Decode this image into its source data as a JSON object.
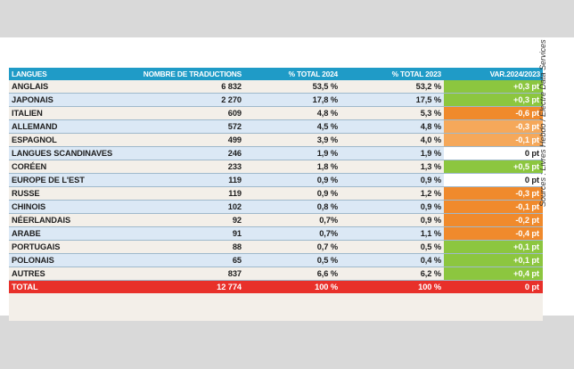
{
  "colors": {
    "header_bg": "#1f9bc7",
    "row_zebra": "#dbe8f5",
    "total_bg": "#e8302a",
    "var_positive": "#8cc63f",
    "var_negative": "#f08a2c",
    "var_small_negative": "#f5a85a",
    "var_zero": "#ffffff"
  },
  "table": {
    "headers": [
      "LANGUES",
      "NOMBRE DE TRADUCTIONS",
      "% TOTAL 2024",
      "% TOTAL 2023",
      "VAR.2024/2023"
    ],
    "rows": [
      {
        "lang": "ANGLAIS",
        "count": "6 832",
        "p2024": "53,5 %",
        "p2023": "53,2 %",
        "var": "+0,3 pt",
        "var_color": "#8cc63f"
      },
      {
        "lang": "JAPONAIS",
        "count": "2 270",
        "p2024": "17,8 %",
        "p2023": "17,5 %",
        "var": "+0,3 pt",
        "var_color": "#8cc63f"
      },
      {
        "lang": "ITALIEN",
        "count": "609",
        "p2024": "4,8 %",
        "p2023": "5,3 %",
        "var": "-0,6 pt",
        "var_color": "#f08a2c"
      },
      {
        "lang": "ALLEMAND",
        "count": "572",
        "p2024": "4,5 %",
        "p2023": "4,8 %",
        "var": "-0,3 pt",
        "var_color": "#f5a85a"
      },
      {
        "lang": "ESPAGNOL",
        "count": "499",
        "p2024": "3,9 %",
        "p2023": "4,0 %",
        "var": "-0,1 pt",
        "var_color": "#f5a85a"
      },
      {
        "lang": "LANGUES SCANDINAVES",
        "count": "246",
        "p2024": "1,9 %",
        "p2023": "1,9 %",
        "var": "0 pt",
        "var_color": "#ffffff"
      },
      {
        "lang": "CORÉEN",
        "count": "233",
        "p2024": "1,8 %",
        "p2023": "1,3 %",
        "var": "+0,5 pt",
        "var_color": "#8cc63f"
      },
      {
        "lang": "EUROPE DE L'EST",
        "count": "119",
        "p2024": "0,9 %",
        "p2023": "0,9 %",
        "var": "0 pt",
        "var_color": "#ffffff"
      },
      {
        "lang": "RUSSE",
        "count": "119",
        "p2024": "0,9 %",
        "p2023": "1,2 %",
        "var": "-0,3 pt",
        "var_color": "#f08a2c"
      },
      {
        "lang": "CHINOIS",
        "count": "102",
        "p2024": "0,8 %",
        "p2023": "0,9 %",
        "var": "-0,1 pt",
        "var_color": "#f08a2c"
      },
      {
        "lang": "NÉERLANDAIS",
        "count": "92",
        "p2024": "0,7%",
        "p2023": "0,9 %",
        "var": "-0,2 pt",
        "var_color": "#f08a2c"
      },
      {
        "lang": "ARABE",
        "count": "91",
        "p2024": "0,7%",
        "p2023": "1,1 %",
        "var": "-0,4 pt",
        "var_color": "#f08a2c"
      },
      {
        "lang": "PORTUGAIS",
        "count": "88",
        "p2024": "0,7 %",
        "p2023": "0,5 %",
        "var": "+0,1 pt",
        "var_color": "#8cc63f"
      },
      {
        "lang": "POLONAIS",
        "count": "65",
        "p2024": "0,5 %",
        "p2023": "0,4 %",
        "var": "+0,1 pt",
        "var_color": "#8cc63f"
      },
      {
        "lang": "AUTRES",
        "count": "837",
        "p2024": "6,6 %",
        "p2023": "6,2 %",
        "var": "+0,4 pt",
        "var_color": "#8cc63f"
      }
    ],
    "total": {
      "lang": "TOTAL",
      "count": "12 774",
      "p2024": "100 %",
      "p2023": "100 %",
      "var": "0 pt"
    }
  },
  "source": "Sources : Livres Hebdo / Electre Data Services"
}
